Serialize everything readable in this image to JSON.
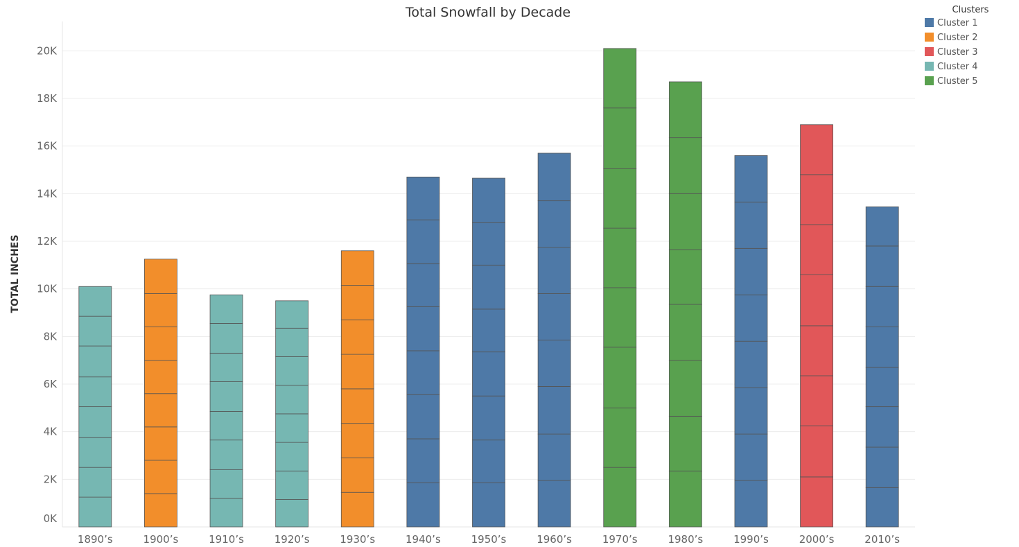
{
  "chart_data": {
    "type": "bar",
    "stacked": true,
    "title": "Total Snowfall by Decade",
    "xlabel": "",
    "ylabel": "TOTAL INCHES",
    "ylim": [
      0,
      21000
    ],
    "yticks": [
      0,
      2000,
      4000,
      6000,
      8000,
      10000,
      12000,
      14000,
      16000,
      18000,
      20000
    ],
    "ytick_labels": [
      "0K",
      "2K",
      "4K",
      "6K",
      "8K",
      "10K",
      "12K",
      "14K",
      "16K",
      "18K",
      "20K"
    ],
    "grid": true,
    "legend": {
      "title": "Clusters",
      "placement": "top-right",
      "entries": [
        {
          "name": "Cluster 1",
          "color": "#4e79a7"
        },
        {
          "name": "Cluster 2",
          "color": "#f28e2b"
        },
        {
          "name": "Cluster 3",
          "color": "#e15759"
        },
        {
          "name": "Cluster 4",
          "color": "#76b7b2"
        },
        {
          "name": "Cluster 5",
          "color": "#59a14f"
        }
      ]
    },
    "categories": [
      "1890’s",
      "1900’s",
      "1910’s",
      "1920’s",
      "1930’s",
      "1940’s",
      "1950’s",
      "1960’s",
      "1970’s",
      "1980’s",
      "1990’s",
      "2000’s",
      "2010’s"
    ],
    "bars": [
      {
        "category": "1890’s",
        "cluster": "Cluster 4",
        "total": 10100,
        "segments": [
          1250,
          1250,
          1250,
          1300,
          1250,
          1300,
          1250,
          1250
        ]
      },
      {
        "category": "1900’s",
        "cluster": "Cluster 2",
        "total": 11250,
        "segments": [
          1400,
          1400,
          1400,
          1400,
          1400,
          1400,
          1400,
          1450
        ]
      },
      {
        "category": "1910’s",
        "cluster": "Cluster 4",
        "total": 9750,
        "segments": [
          1200,
          1200,
          1250,
          1200,
          1250,
          1200,
          1250,
          1200
        ]
      },
      {
        "category": "1920’s",
        "cluster": "Cluster 4",
        "total": 9500,
        "segments": [
          1150,
          1200,
          1200,
          1200,
          1200,
          1200,
          1200,
          1150
        ]
      },
      {
        "category": "1930’s",
        "cluster": "Cluster 2",
        "total": 11600,
        "segments": [
          1450,
          1450,
          1450,
          1450,
          1450,
          1450,
          1450,
          1450
        ]
      },
      {
        "category": "1940’s",
        "cluster": "Cluster 1",
        "total": 14700,
        "segments": [
          1850,
          1850,
          1850,
          1850,
          1850,
          1800,
          1850,
          1800
        ]
      },
      {
        "category": "1950’s",
        "cluster": "Cluster 1",
        "total": 14650,
        "segments": [
          1850,
          1800,
          1850,
          1850,
          1800,
          1850,
          1800,
          1850
        ]
      },
      {
        "category": "1960’s",
        "cluster": "Cluster 1",
        "total": 15700,
        "segments": [
          1950,
          1950,
          2000,
          1950,
          1950,
          1950,
          1950,
          2000
        ]
      },
      {
        "category": "1970’s",
        "cluster": "Cluster 5",
        "total": 20100,
        "segments": [
          2500,
          2500,
          2550,
          2500,
          2500,
          2500,
          2550,
          2500
        ]
      },
      {
        "category": "1980’s",
        "cluster": "Cluster 5",
        "total": 18700,
        "segments": [
          2350,
          2300,
          2350,
          2350,
          2300,
          2350,
          2350,
          2350
        ]
      },
      {
        "category": "1990’s",
        "cluster": "Cluster 1",
        "total": 15600,
        "segments": [
          1950,
          1950,
          1950,
          1950,
          1950,
          1950,
          1950,
          1950
        ]
      },
      {
        "category": "2000’s",
        "cluster": "Cluster 3",
        "total": 16900,
        "segments": [
          2100,
          2150,
          2100,
          2100,
          2150,
          2100,
          2100,
          2100
        ]
      },
      {
        "category": "2010’s",
        "cluster": "Cluster 1",
        "total": 13450,
        "segments": [
          1650,
          1700,
          1700,
          1650,
          1700,
          1700,
          1700,
          1650
        ]
      }
    ]
  }
}
